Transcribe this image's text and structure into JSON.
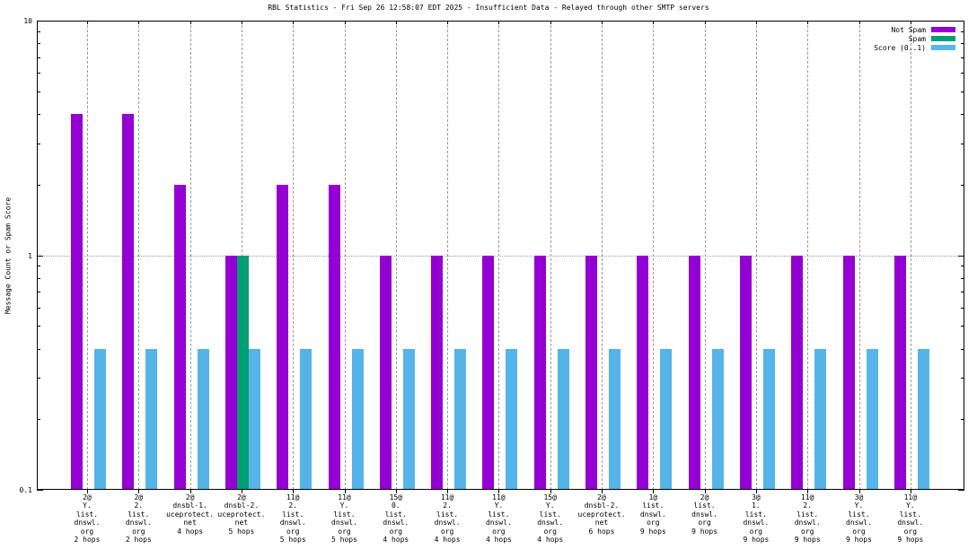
{
  "chart_data": {
    "type": "bar",
    "title": "RBL Statistics - Fri Sep 26 12:58:07 EDT 2025 - Insufficient Data - Relayed through other SMTP servers",
    "ylabel": "Message Count or Spam Score",
    "xlabel": "",
    "y_scale": "log",
    "ylim": [
      0.1,
      10
    ],
    "y_major_ticks": [
      {
        "label": "10",
        "value": 10
      },
      {
        "label": "1",
        "value": 1
      },
      {
        "label": "0.1",
        "value": 0.1
      }
    ],
    "grid": {
      "horizontal_at": [
        1
      ],
      "vertical": "one-dashed-line-per-category"
    },
    "legend_position": "top-right-inside",
    "categories": [
      [
        "2@",
        "Y.",
        "list.",
        "dnswl.",
        "org",
        "2 hops"
      ],
      [
        "2@",
        "2.",
        "list.",
        "dnswl.",
        "org",
        "2 hops"
      ],
      [
        "2@",
        "dnsbl-1.",
        "uceprotect.",
        "net",
        "4 hops"
      ],
      [
        "2@",
        "dnsbl-2.",
        "uceprotect.",
        "net",
        "5 hops"
      ],
      [
        "11@",
        "2.",
        "list.",
        "dnswl.",
        "org",
        "5 hops"
      ],
      [
        "11@",
        "Y.",
        "list.",
        "dnswl.",
        "org",
        "5 hops"
      ],
      [
        "15@",
        "0.",
        "list.",
        "dnswl.",
        "org",
        "4 hops"
      ],
      [
        "11@",
        "2.",
        "list.",
        "dnswl.",
        "org",
        "4 hops"
      ],
      [
        "11@",
        "Y.",
        "list.",
        "dnswl.",
        "org",
        "4 hops"
      ],
      [
        "15@",
        "Y.",
        "list.",
        "dnswl.",
        "org",
        "4 hops"
      ],
      [
        "2@",
        "dnsbl-2.",
        "uceprotect.",
        "net",
        "6 hops"
      ],
      [
        "1@",
        "list.",
        "dnswl.",
        "org",
        "9 hops"
      ],
      [
        "2@",
        "list.",
        "dnswl.",
        "org",
        "9 hops"
      ],
      [
        "3@",
        "1.",
        "list.",
        "dnswl.",
        "org",
        "9 hops"
      ],
      [
        "11@",
        "2.",
        "list.",
        "dnswl.",
        "org",
        "9 hops"
      ],
      [
        "3@",
        "Y.",
        "list.",
        "dnswl.",
        "org",
        "9 hops"
      ],
      [
        "11@",
        "Y.",
        "list.",
        "dnswl.",
        "org",
        "9 hops"
      ]
    ],
    "series": [
      {
        "name": "Not Spam",
        "color": "#9400d3",
        "values": [
          4,
          4,
          2,
          1,
          2,
          2,
          1,
          1,
          1,
          1,
          1,
          1,
          1,
          1,
          1,
          1,
          1
        ]
      },
      {
        "name": "Spam",
        "color": "#009e73",
        "values": [
          0,
          0,
          0,
          1,
          0,
          0,
          0,
          0,
          0,
          0,
          0,
          0,
          0,
          0,
          0,
          0,
          0
        ]
      },
      {
        "name": "Score (0..1)",
        "color": "#56b4e9",
        "values": [
          0.4,
          0.4,
          0.4,
          0.4,
          0.4,
          0.4,
          0.4,
          0.4,
          0.4,
          0.4,
          0.4,
          0.4,
          0.4,
          0.4,
          0.4,
          0.4,
          0.4
        ]
      }
    ]
  }
}
